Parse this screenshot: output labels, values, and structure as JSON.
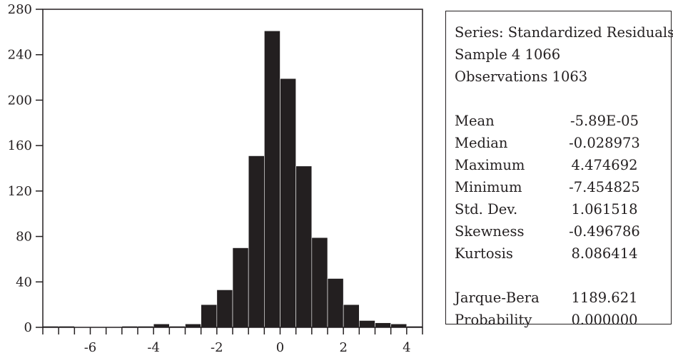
{
  "chart_data": {
    "type": "bar",
    "xlim": [
      -7.5,
      4.5
    ],
    "ylim": [
      0,
      280
    ],
    "bin_width": 0.5,
    "bin_starts": [
      -7.5,
      -7.0,
      -6.5,
      -6.0,
      -5.5,
      -5.0,
      -4.5,
      -4.0,
      -3.5,
      -3.0,
      -2.5,
      -2.0,
      -1.5,
      -1.0,
      -0.5,
      0.0,
      0.5,
      1.0,
      1.5,
      2.0,
      2.5,
      3.0,
      3.5,
      4.0
    ],
    "values": [
      1,
      1,
      0,
      0,
      0,
      1,
      1,
      3,
      1,
      3,
      20,
      33,
      70,
      151,
      261,
      219,
      142,
      79,
      43,
      20,
      6,
      4,
      3,
      1
    ],
    "x_ticks": [
      -6,
      -4,
      -2,
      0,
      2,
      4
    ],
    "x_tick_labels": [
      "-6",
      "-4",
      "-2",
      "0",
      "2",
      "4"
    ],
    "x_minor_step": 0.5,
    "y_ticks": [
      0,
      40,
      80,
      120,
      160,
      200,
      240,
      280
    ],
    "y_tick_labels": [
      "0",
      "40",
      "80",
      "120",
      "160",
      "200",
      "240",
      "280"
    ],
    "bar_color": "#231f20",
    "grid": false
  },
  "stats": {
    "series": "Series: Standardized Residuals",
    "sample": "Sample 4 1066",
    "observations": "Observations 1063",
    "rows": [
      {
        "label": "Mean",
        "value": "-5.89E-05"
      },
      {
        "label": "Median",
        "value": "-0.028973"
      },
      {
        "label": "Maximum",
        "value": "4.474692"
      },
      {
        "label": "Minimum",
        "value": "-7.454825"
      },
      {
        "label": "Std. Dev.",
        "value": "1.061518"
      },
      {
        "label": "Skewness",
        "value": "-0.496786"
      },
      {
        "label": "Kurtosis",
        "value": "8.086414"
      }
    ],
    "test_rows": [
      {
        "label": "Jarque-Bera",
        "value": "1189.621"
      },
      {
        "label": "Probability",
        "value": "0.000000"
      }
    ]
  }
}
